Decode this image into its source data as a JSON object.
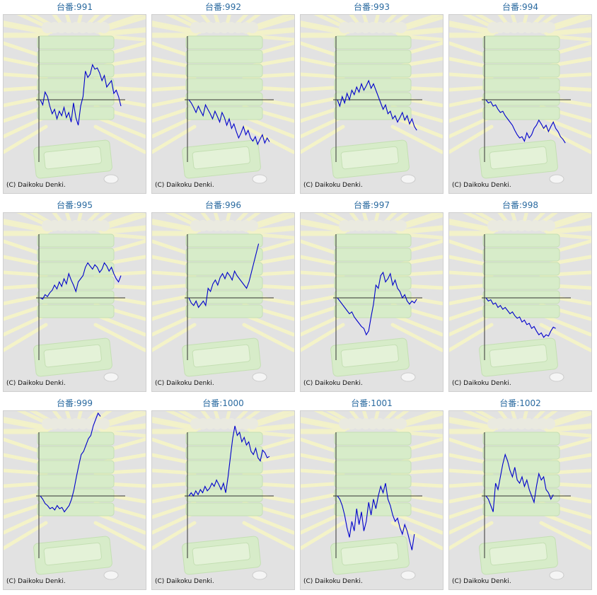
{
  "colors": {
    "title": "#2a6aa0",
    "line": "#0000cc",
    "axis": "#333333",
    "panel_bg": "#e2e2e2"
  },
  "copyright": "(C) Daikoku Denki.",
  "chart_data": [
    {
      "type": "line",
      "title": "台番:991",
      "values": [
        0,
        -8,
        12,
        5,
        -10,
        -22,
        -15,
        -30,
        -18,
        -25,
        -12,
        -28,
        -20,
        -35,
        -5,
        -28,
        -40,
        -10,
        5,
        45,
        35,
        40,
        55,
        48,
        50,
        42,
        30,
        38,
        20,
        25,
        30,
        10,
        15,
        5,
        -10
      ]
    },
    {
      "type": "line",
      "title": "台番:992",
      "values": [
        0,
        -5,
        -12,
        -20,
        -10,
        -18,
        -25,
        -8,
        -15,
        -22,
        -30,
        -18,
        -26,
        -35,
        -20,
        -28,
        -40,
        -30,
        -45,
        -38,
        -50,
        -60,
        -52,
        -42,
        -55,
        -48,
        -60,
        -65,
        -58,
        -70,
        -62,
        -55,
        -68,
        -60,
        -66
      ]
    },
    {
      "type": "line",
      "title": "台番:993",
      "values": [
        0,
        -10,
        5,
        -5,
        10,
        0,
        15,
        8,
        20,
        12,
        25,
        15,
        22,
        30,
        18,
        25,
        15,
        5,
        -5,
        -15,
        -8,
        -22,
        -18,
        -30,
        -25,
        -35,
        -28,
        -20,
        -32,
        -25,
        -38,
        -30,
        -42,
        -48
      ]
    },
    {
      "type": "line",
      "title": "台番:994",
      "values": [
        0,
        -5,
        -3,
        -10,
        -8,
        -15,
        -20,
        -18,
        -25,
        -30,
        -35,
        -40,
        -48,
        -55,
        -60,
        -58,
        -65,
        -52,
        -60,
        -55,
        -45,
        -40,
        -32,
        -38,
        -45,
        -40,
        -50,
        -42,
        -35,
        -45,
        -50,
        -58,
        -62,
        -68
      ]
    },
    {
      "type": "line",
      "title": "台番:995",
      "values": [
        0,
        -2,
        5,
        2,
        8,
        12,
        20,
        14,
        25,
        18,
        30,
        22,
        38,
        28,
        20,
        10,
        25,
        30,
        35,
        48,
        55,
        50,
        45,
        52,
        48,
        40,
        45,
        55,
        50,
        42,
        48,
        38,
        30,
        25,
        35
      ]
    },
    {
      "type": "line",
      "title": "台番:996",
      "values": [
        0,
        -8,
        -12,
        -5,
        -15,
        -10,
        -5,
        -12,
        15,
        10,
        22,
        28,
        20,
        32,
        38,
        30,
        40,
        35,
        28,
        42,
        35,
        30,
        25,
        20,
        15,
        25,
        40,
        55,
        70,
        85
      ]
    },
    {
      "type": "line",
      "title": "台番:997",
      "values": [
        0,
        -5,
        -10,
        -15,
        -20,
        -25,
        -22,
        -30,
        -35,
        -40,
        -45,
        -48,
        -58,
        -52,
        -30,
        -10,
        20,
        15,
        35,
        40,
        25,
        30,
        38,
        20,
        28,
        15,
        10,
        0,
        5,
        -5,
        -10,
        -5,
        -8,
        -2
      ]
    },
    {
      "type": "line",
      "title": "台番:998",
      "values": [
        0,
        -5,
        -3,
        -10,
        -8,
        -15,
        -12,
        -18,
        -15,
        -20,
        -25,
        -22,
        -28,
        -32,
        -30,
        -38,
        -35,
        -42,
        -40,
        -48,
        -45,
        -52,
        -58,
        -55,
        -62,
        -58,
        -60,
        -52,
        -46,
        -48
      ]
    },
    {
      "type": "line",
      "title": "台番:999",
      "values": [
        0,
        -5,
        -12,
        -15,
        -20,
        -18,
        -22,
        -15,
        -20,
        -18,
        -25,
        -20,
        -15,
        -5,
        10,
        30,
        48,
        65,
        70,
        80,
        90,
        95,
        110,
        120,
        130,
        125
      ]
    },
    {
      "type": "line",
      "title": "台番:1000",
      "values": [
        0,
        5,
        0,
        8,
        2,
        10,
        5,
        15,
        8,
        12,
        20,
        15,
        25,
        18,
        10,
        20,
        5,
        30,
        60,
        90,
        110,
        95,
        100,
        85,
        92,
        80,
        85,
        70,
        65,
        75,
        60,
        55,
        72,
        68,
        60,
        62
      ]
    },
    {
      "type": "line",
      "title": "台番:1001",
      "values": [
        0,
        -5,
        -15,
        -30,
        -50,
        -65,
        -40,
        -55,
        -20,
        -45,
        -25,
        -55,
        -40,
        -10,
        -30,
        -5,
        -20,
        0,
        15,
        5,
        20,
        -5,
        -15,
        -30,
        -40,
        -35,
        -50,
        -60,
        -45,
        -55,
        -70,
        -85,
        -60
      ]
    },
    {
      "type": "line",
      "title": "台番:1002",
      "values": [
        0,
        -5,
        -15,
        -25,
        20,
        10,
        30,
        50,
        65,
        55,
        40,
        30,
        45,
        25,
        20,
        30,
        15,
        25,
        10,
        0,
        -10,
        15,
        35,
        25,
        30,
        10,
        5,
        -5,
        2
      ]
    }
  ]
}
